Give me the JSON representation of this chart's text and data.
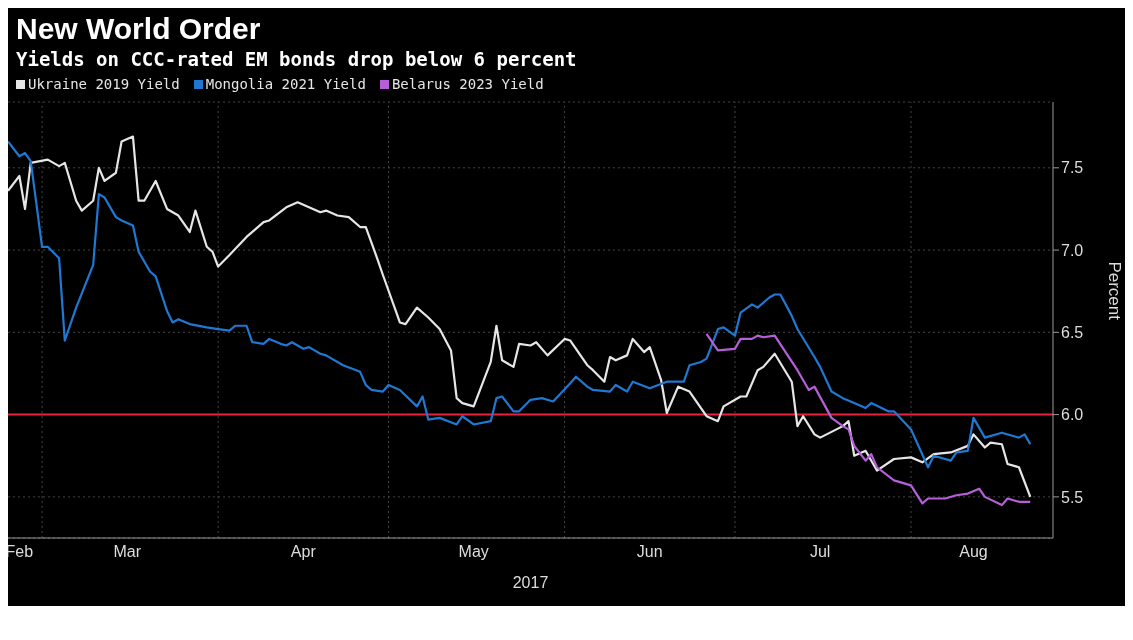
{
  "chart_data": {
    "type": "line",
    "title": "New World Order",
    "subtitle": "Yields on CCC-rated EM bonds drop below 6 percent",
    "xlabel": "2017",
    "ylabel": "Percent",
    "legend": "top left",
    "grid": true,
    "marker": "none",
    "line_style": "solid",
    "xlim": [
      "2017-02-23",
      "2017-08-26"
    ],
    "xticks": [
      {
        "value": "2017-02-25",
        "label": "Feb"
      },
      {
        "value": "2017-03-01",
        "label": null
      },
      {
        "value": "2017-03-16",
        "label": "Mar"
      },
      {
        "value": "2017-04-01",
        "label": null
      },
      {
        "value": "2017-04-16",
        "label": "Apr"
      },
      {
        "value": "2017-05-01",
        "label": null
      },
      {
        "value": "2017-05-16",
        "label": "May"
      },
      {
        "value": "2017-06-01",
        "label": null
      },
      {
        "value": "2017-06-16",
        "label": "Jun"
      },
      {
        "value": "2017-07-01",
        "label": null
      },
      {
        "value": "2017-07-16",
        "label": "Jul"
      },
      {
        "value": "2017-08-01",
        "label": null
      },
      {
        "value": "2017-08-12",
        "label": "Aug"
      }
    ],
    "ylim": [
      5.25,
      7.9
    ],
    "yticks": [
      {
        "value": 5.5,
        "label": "5.5"
      },
      {
        "value": 6,
        "label": "6.0"
      },
      {
        "value": 6.5,
        "label": "6.5"
      },
      {
        "value": 7,
        "label": "7.0"
      },
      {
        "value": 7.5,
        "label": "7.5"
      }
    ],
    "ref_lines": [
      {
        "axis": "y",
        "value": 6,
        "label": null,
        "color": "#e8243c",
        "line_style": "solid"
      }
    ],
    "series": [
      {
        "name": "Ukraine 2019 Yield",
        "color": "#e6e6e6",
        "x": [
          "2017-02-23",
          "2017-02-25",
          "2017-02-26",
          "2017-02-27",
          "2017-03-02",
          "2017-03-04",
          "2017-03-05",
          "2017-03-07",
          "2017-03-08",
          "2017-03-10",
          "2017-03-11",
          "2017-03-12",
          "2017-03-14",
          "2017-03-15",
          "2017-03-17",
          "2017-03-18",
          "2017-03-19",
          "2017-03-21",
          "2017-03-23",
          "2017-03-25",
          "2017-03-27",
          "2017-03-28",
          "2017-03-30",
          "2017-03-31",
          "2017-04-01",
          "2017-04-03",
          "2017-04-06",
          "2017-04-09",
          "2017-04-10",
          "2017-04-13",
          "2017-04-15",
          "2017-04-19",
          "2017-04-20",
          "2017-04-22",
          "2017-04-24",
          "2017-04-26",
          "2017-04-27",
          "2017-04-29",
          "2017-04-30",
          "2017-05-03",
          "2017-05-04",
          "2017-05-06",
          "2017-05-08",
          "2017-05-10",
          "2017-05-12",
          "2017-05-13",
          "2017-05-14",
          "2017-05-16",
          "2017-05-19",
          "2017-05-20",
          "2017-05-21",
          "2017-05-23",
          "2017-05-24",
          "2017-05-26",
          "2017-05-27",
          "2017-05-29",
          "2017-06-01",
          "2017-06-02",
          "2017-06-05",
          "2017-06-06",
          "2017-06-08",
          "2017-06-09",
          "2017-06-10",
          "2017-06-12",
          "2017-06-13",
          "2017-06-15",
          "2017-06-16",
          "2017-06-18",
          "2017-06-19",
          "2017-06-21",
          "2017-06-23",
          "2017-06-26",
          "2017-06-28",
          "2017-06-29",
          "2017-07-02",
          "2017-07-03",
          "2017-07-05",
          "2017-07-06",
          "2017-07-08",
          "2017-07-11",
          "2017-07-12",
          "2017-07-13",
          "2017-07-15",
          "2017-07-16",
          "2017-07-20",
          "2017-07-21",
          "2017-07-22",
          "2017-07-24",
          "2017-07-26",
          "2017-07-29",
          "2017-08-01",
          "2017-08-03",
          "2017-08-05",
          "2017-08-08",
          "2017-08-11",
          "2017-08-12",
          "2017-08-14",
          "2017-08-15",
          "2017-08-17",
          "2017-08-18",
          "2017-08-20",
          "2017-08-22"
        ],
        "values": [
          7.36,
          7.45,
          7.25,
          7.53,
          7.55,
          7.51,
          7.53,
          7.3,
          7.24,
          7.3,
          7.5,
          7.42,
          7.47,
          7.66,
          7.69,
          7.3,
          7.3,
          7.42,
          7.25,
          7.21,
          7.11,
          7.24,
          7.02,
          6.99,
          6.9,
          6.97,
          7.08,
          7.17,
          7.18,
          7.26,
          7.29,
          7.23,
          7.24,
          7.21,
          7.2,
          7.14,
          7.14,
          6.95,
          6.85,
          6.56,
          6.55,
          6.65,
          6.59,
          6.52,
          6.39,
          6.1,
          6.07,
          6.05,
          6.32,
          6.54,
          6.33,
          6.29,
          6.43,
          6.42,
          6.44,
          6.36,
          6.46,
          6.45,
          6.3,
          6.27,
          6.2,
          6.35,
          6.33,
          6.36,
          6.46,
          6.38,
          6.41,
          6.21,
          6.01,
          6.17,
          6.14,
          5.99,
          5.96,
          6.05,
          6.11,
          6.11,
          6.27,
          6.29,
          6.37,
          6.2,
          5.93,
          5.99,
          5.88,
          5.86,
          5.93,
          5.96,
          5.75,
          5.78,
          5.66,
          5.73,
          5.74,
          5.71,
          5.76,
          5.77,
          5.81,
          5.88,
          5.8,
          5.83,
          5.82,
          5.7,
          5.68,
          5.5
        ]
      },
      {
        "name": "Mongolia 2021 Yield",
        "color": "#1f78d1",
        "x": [
          "2017-02-23",
          "2017-02-25",
          "2017-02-26",
          "2017-02-27",
          "2017-03-01",
          "2017-03-02",
          "2017-03-04",
          "2017-03-05",
          "2017-03-07",
          "2017-03-10",
          "2017-03-11",
          "2017-03-12",
          "2017-03-14",
          "2017-03-15",
          "2017-03-17",
          "2017-03-18",
          "2017-03-20",
          "2017-03-21",
          "2017-03-23",
          "2017-03-24",
          "2017-03-25",
          "2017-03-27",
          "2017-03-30",
          "2017-04-01",
          "2017-04-03",
          "2017-04-04",
          "2017-04-06",
          "2017-04-07",
          "2017-04-09",
          "2017-04-10",
          "2017-04-12",
          "2017-04-13",
          "2017-04-14",
          "2017-04-16",
          "2017-04-17",
          "2017-04-19",
          "2017-04-20",
          "2017-04-23",
          "2017-04-26",
          "2017-04-27",
          "2017-04-28",
          "2017-04-30",
          "2017-05-01",
          "2017-05-03",
          "2017-05-06",
          "2017-05-07",
          "2017-05-08",
          "2017-05-10",
          "2017-05-13",
          "2017-05-14",
          "2017-05-16",
          "2017-05-19",
          "2017-05-20",
          "2017-05-21",
          "2017-05-23",
          "2017-05-24",
          "2017-05-26",
          "2017-05-28",
          "2017-05-30",
          "2017-06-02",
          "2017-06-03",
          "2017-06-05",
          "2017-06-06",
          "2017-06-09",
          "2017-06-10",
          "2017-06-12",
          "2017-06-13",
          "2017-06-16",
          "2017-06-19",
          "2017-06-22",
          "2017-06-23",
          "2017-06-25",
          "2017-06-26",
          "2017-06-28",
          "2017-06-29",
          "2017-07-01",
          "2017-07-02",
          "2017-07-04",
          "2017-07-05",
          "2017-07-07",
          "2017-07-08",
          "2017-07-09",
          "2017-07-11",
          "2017-07-12",
          "2017-07-15",
          "2017-07-16",
          "2017-07-18",
          "2017-07-20",
          "2017-07-22",
          "2017-07-24",
          "2017-07-25",
          "2017-07-28",
          "2017-07-29",
          "2017-08-01",
          "2017-08-04",
          "2017-08-05",
          "2017-08-08",
          "2017-08-09",
          "2017-08-11",
          "2017-08-12",
          "2017-08-14",
          "2017-08-17",
          "2017-08-20",
          "2017-08-21",
          "2017-08-22"
        ],
        "values": [
          7.66,
          7.57,
          7.59,
          7.54,
          7.02,
          7.02,
          6.95,
          6.45,
          6.65,
          6.91,
          7.34,
          7.32,
          7.2,
          7.18,
          7.15,
          6.99,
          6.87,
          6.84,
          6.63,
          6.56,
          6.58,
          6.55,
          6.53,
          6.52,
          6.51,
          6.54,
          6.54,
          6.44,
          6.43,
          6.46,
          6.43,
          6.42,
          6.44,
          6.4,
          6.41,
          6.37,
          6.36,
          6.3,
          6.26,
          6.18,
          6.15,
          6.14,
          6.18,
          6.15,
          6.05,
          6.11,
          5.97,
          5.98,
          5.94,
          5.99,
          5.94,
          5.96,
          6.1,
          6.11,
          6.02,
          6.02,
          6.09,
          6.1,
          6.08,
          6.19,
          6.23,
          6.17,
          6.15,
          6.14,
          6.18,
          6.14,
          6.2,
          6.16,
          6.2,
          6.2,
          6.3,
          6.32,
          6.34,
          6.52,
          6.53,
          6.48,
          6.62,
          6.67,
          6.65,
          6.71,
          6.73,
          6.73,
          6.6,
          6.52,
          6.35,
          6.29,
          6.14,
          6.1,
          6.07,
          6.04,
          6.07,
          6.02,
          6.02,
          5.91,
          5.68,
          5.75,
          5.72,
          5.77,
          5.78,
          5.98,
          5.86,
          5.89,
          5.86,
          5.88,
          5.82
        ]
      },
      {
        "name": "Belarus 2023 Yield",
        "color": "#b65fd8",
        "x": [
          "2017-06-26",
          "2017-06-28",
          "2017-07-01",
          "2017-07-02",
          "2017-07-04",
          "2017-07-05",
          "2017-07-06",
          "2017-07-08",
          "2017-07-12",
          "2017-07-14",
          "2017-07-15",
          "2017-07-18",
          "2017-07-20",
          "2017-07-21",
          "2017-07-22",
          "2017-07-24",
          "2017-07-25",
          "2017-07-26",
          "2017-07-29",
          "2017-08-01",
          "2017-08-03",
          "2017-08-04",
          "2017-08-07",
          "2017-08-09",
          "2017-08-11",
          "2017-08-13",
          "2017-08-14",
          "2017-08-17",
          "2017-08-18",
          "2017-08-20",
          "2017-08-22"
        ],
        "values": [
          6.49,
          6.39,
          6.4,
          6.46,
          6.46,
          6.48,
          6.47,
          6.48,
          6.27,
          6.15,
          6.17,
          5.98,
          5.93,
          5.91,
          5.81,
          5.72,
          5.76,
          5.68,
          5.6,
          5.57,
          5.46,
          5.49,
          5.49,
          5.51,
          5.52,
          5.55,
          5.5,
          5.45,
          5.49,
          5.47,
          5.47
        ]
      }
    ]
  }
}
